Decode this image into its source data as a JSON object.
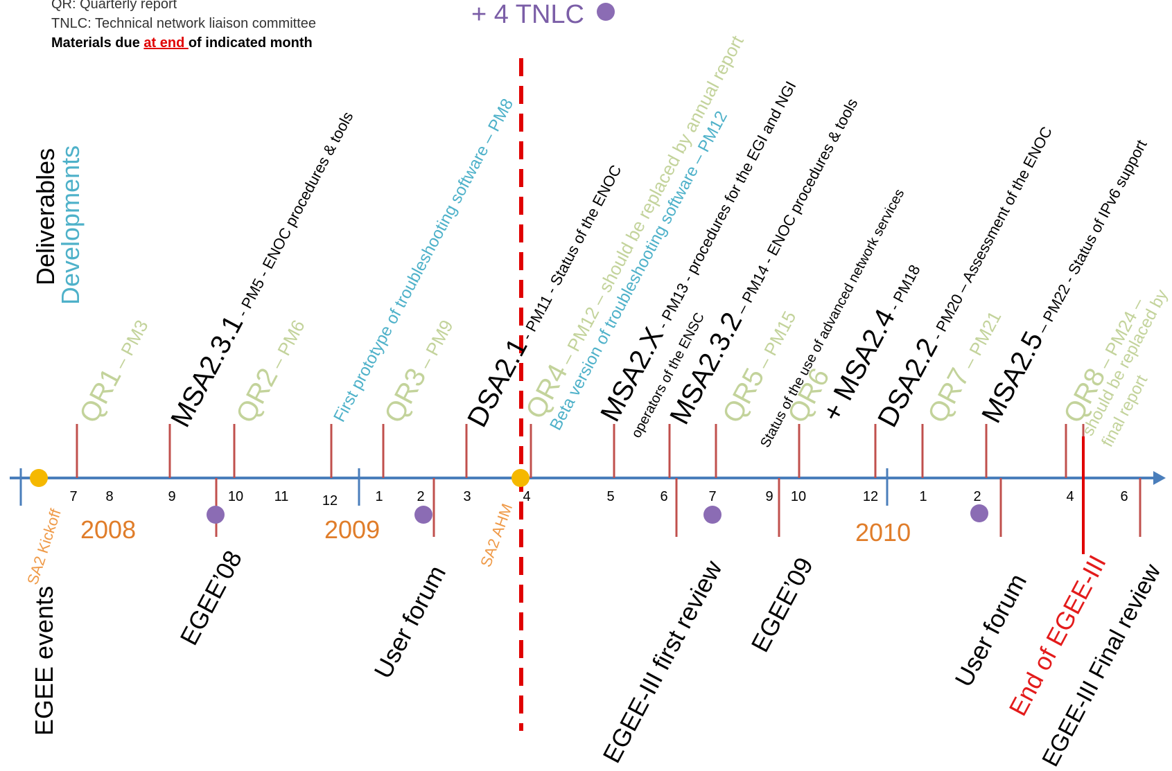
{
  "legend": {
    "line1": "QR: Quarterly report",
    "line2": "TNLC: Technical network liaison committee",
    "line3_pre": "Materials due ",
    "line3_red": "at end ",
    "line3_post": "of indicated month"
  },
  "tnlc_note": "+ 4 TNLC",
  "row_labels": {
    "deliverables": "Deliverables",
    "developments": "Developments",
    "events": "EGEE events"
  },
  "years": [
    "2008",
    "2009",
    "2010"
  ],
  "months": [
    "7",
    "8",
    "9",
    "10",
    "11",
    "12",
    "1",
    "2",
    "3",
    "4",
    "5",
    "6",
    "7",
    "9",
    "10",
    "12",
    "1",
    "2",
    "4",
    "6"
  ],
  "deliverables": [
    {
      "main": "QR1",
      "sub": " – PM3",
      "style": "pale"
    },
    {
      "main": "MSA2.3.1",
      "sub": " - PM5 - ENOC procedures & tools",
      "style": "black"
    },
    {
      "main": "QR2",
      "sub": " – PM6",
      "style": "pale"
    },
    {
      "main": "First prototype of troubleshooting software – PM8",
      "sub": "",
      "style": "blue"
    },
    {
      "main": "QR3",
      "sub": " – PM9",
      "style": "pale"
    },
    {
      "main": "DSA2.1",
      "sub": " - PM11 - Status of the ENOC",
      "style": "black"
    },
    {
      "main": "QR4",
      "sub": " – PM12 – should be replaced by annual report",
      "style": "pale"
    },
    {
      "main": "Beta version of troubleshooting software – PM12",
      "sub": "",
      "style": "blue"
    },
    {
      "main": "MSA2.X",
      "sub": " - PM13 - procedures for the EGI and NGI",
      "sub2": "operators of the ENSC",
      "style": "black"
    },
    {
      "main": "MSA2.3.2",
      "sub": " – PM14 - ENOC procedures & tools",
      "style": "black"
    },
    {
      "main": "QR5",
      "sub": " – PM15",
      "style": "pale"
    },
    {
      "main": "QR6",
      "sub": "",
      "style": "pale"
    },
    {
      "main": "+ MSA2.4",
      "sub": " - PM18",
      "sub2": "Status of the use of advanced network services",
      "style": "black"
    },
    {
      "main": "DSA2.2",
      "sub": " - PM20 – Assessment of the ENOC",
      "style": "black"
    },
    {
      "main": "QR7",
      "sub": " – PM21",
      "style": "pale"
    },
    {
      "main": "MSA2.5",
      "sub": " – PM22 - Status of IPv6 support",
      "style": "black"
    },
    {
      "main": "QR8",
      "sub": " – PM24 –",
      "sub2": "should be replaced by",
      "sub3": "final report",
      "style": "pale"
    }
  ],
  "events": [
    {
      "label": "SA2 Kickoff",
      "style": "orange"
    },
    {
      "label": "EGEE’08",
      "style": "black"
    },
    {
      "label": "User forum",
      "style": "black"
    },
    {
      "label": "SA2 AHM",
      "style": "orange"
    },
    {
      "label": "EGEE-III  first review",
      "style": "black"
    },
    {
      "label": "EGEE’09",
      "style": "black"
    },
    {
      "label": "User forum",
      "style": "black"
    },
    {
      "label": "End of EGEE-III",
      "style": "red"
    },
    {
      "label": "EGEE-III Final review",
      "style": "black"
    }
  ],
  "colors": {
    "axis": "#4a7ebb",
    "tick": "#c0504d",
    "tnlc_dot": "#8b6cb4",
    "event_dot": "#f5b800",
    "highlight_line": "#e00000"
  }
}
